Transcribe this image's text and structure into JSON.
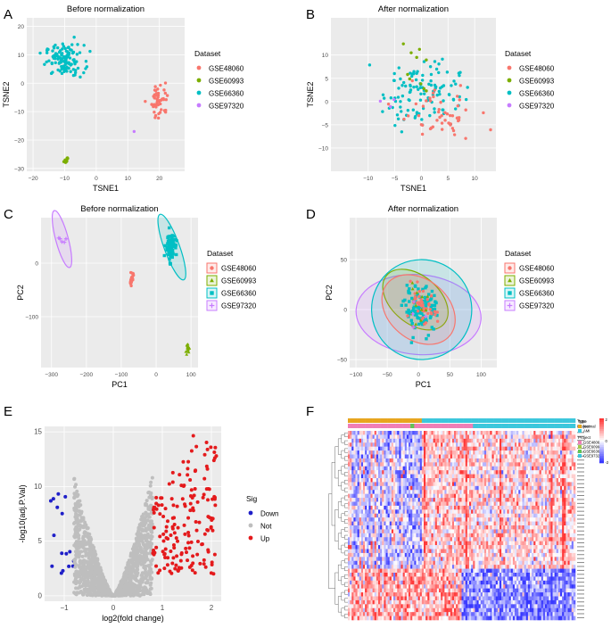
{
  "colors": {
    "GSE48060": "#F8766D",
    "GSE60993": "#7CAE00",
    "GSE66360": "#00BFC4",
    "GSE97320": "#C77CFF",
    "panel_bg": "#EBEBEB",
    "grid": "#FFFFFF",
    "down": "#1F1FC8",
    "not": "#BEBEBE",
    "up": "#E41A1C"
  },
  "chart_data": [
    {
      "id": "A",
      "type": "scatter",
      "title": "Before normalization",
      "xlabel": "TSNE1",
      "ylabel": "TSNE2",
      "xlim": [
        -22,
        28
      ],
      "ylim": [
        -31,
        23
      ],
      "xticks": [
        -20,
        -10,
        0,
        10,
        20
      ],
      "yticks": [
        -30,
        -20,
        -10,
        0,
        10,
        20
      ],
      "legend_title": "Dataset",
      "legend": [
        "GSE48060",
        "GSE60993",
        "GSE66360",
        "GSE97320"
      ],
      "clusters": [
        {
          "series": "GSE66360",
          "count": 120,
          "center": [
            -10,
            8
          ],
          "spread": [
            5.5,
            5
          ]
        },
        {
          "series": "GSE48060",
          "count": 52,
          "center": [
            20,
            -6
          ],
          "spread": [
            2.5,
            5.5
          ]
        },
        {
          "series": "GSE60993",
          "count": 14,
          "center": [
            -9.5,
            -27
          ],
          "spread": [
            0.8,
            1.2
          ]
        },
        {
          "series": "GSE97320",
          "count": 1,
          "center": [
            12,
            -17
          ],
          "spread": [
            0,
            0
          ]
        }
      ]
    },
    {
      "id": "B",
      "type": "scatter",
      "title": "After normalization",
      "xlabel": "TSNE1",
      "ylabel": "TSNE2",
      "xlim": [
        -17,
        14
      ],
      "ylim": [
        -15,
        18
      ],
      "xticks": [
        -10,
        -5,
        0,
        5,
        10
      ],
      "yticks": [
        -10,
        -5,
        0,
        5,
        10
      ],
      "legend_title": "Dataset",
      "legend": [
        "GSE48060",
        "GSE60993",
        "GSE66360",
        "GSE97320"
      ],
      "clusters": [
        {
          "series": "GSE66360",
          "count": 120,
          "center": [
            0,
            2
          ],
          "spread": [
            6.5,
            6.5
          ]
        },
        {
          "series": "GSE48060",
          "count": 52,
          "center": [
            3,
            -3
          ],
          "spread": [
            7,
            5
          ]
        },
        {
          "series": "GSE60993",
          "count": 10,
          "center": [
            0,
            6
          ],
          "spread": [
            5,
            7
          ]
        },
        {
          "series": "GSE97320",
          "count": 3,
          "center": [
            -5,
            0
          ],
          "spread": [
            2,
            2
          ]
        }
      ]
    },
    {
      "id": "C",
      "type": "scatter",
      "title": "Before normalization",
      "xlabel": "PC1",
      "ylabel": "PC2",
      "xlim": [
        -330,
        120
      ],
      "ylim": [
        -195,
        85
      ],
      "xticks": [
        -300,
        -200,
        -100,
        0,
        100
      ],
      "yticks": [
        -100,
        0
      ],
      "legend_title": "Dataset",
      "legend": [
        "GSE48060",
        "GSE60993",
        "GSE66360",
        "GSE97320"
      ],
      "clusters": [
        {
          "series": "GSE66360",
          "count": 90,
          "center": [
            40,
            30
          ],
          "spread": [
            12,
            22
          ]
        },
        {
          "series": "GSE48060",
          "count": 30,
          "center": [
            -70,
            -30
          ],
          "spread": [
            5,
            10
          ]
        },
        {
          "series": "GSE60993",
          "count": 14,
          "center": [
            90,
            -160
          ],
          "spread": [
            4,
            8
          ]
        },
        {
          "series": "GSE97320",
          "count": 5,
          "center": [
            -270,
            45
          ],
          "spread": [
            8,
            10
          ]
        }
      ],
      "ellipses": [
        {
          "series": "GSE66360",
          "center": [
            45,
            30
          ],
          "rx": 22,
          "ry": 65,
          "angle": 20
        },
        {
          "series": "GSE97320",
          "center": [
            -270,
            45
          ],
          "rx": 18,
          "ry": 55,
          "angle": 15
        }
      ]
    },
    {
      "id": "D",
      "type": "scatter",
      "title": "After normalization",
      "xlabel": "PC1",
      "ylabel": "PC2",
      "xlim": [
        -110,
        125
      ],
      "ylim": [
        -58,
        92
      ],
      "xticks": [
        -100,
        -50,
        0,
        50,
        100
      ],
      "yticks": [
        -50,
        0,
        50
      ],
      "legend_title": "Dataset",
      "legend": [
        "GSE48060",
        "GSE60993",
        "GSE66360",
        "GSE97320"
      ],
      "clusters": [
        {
          "series": "GSE66360",
          "count": 110,
          "center": [
            5,
            0
          ],
          "spread": [
            25,
            20
          ]
        },
        {
          "series": "GSE48060",
          "count": 45,
          "center": [
            5,
            0
          ],
          "spread": [
            22,
            18
          ]
        },
        {
          "series": "GSE60993",
          "count": 12,
          "center": [
            0,
            5
          ],
          "spread": [
            18,
            15
          ]
        },
        {
          "series": "GSE97320",
          "count": 4,
          "center": [
            -5,
            -5
          ],
          "spread": [
            15,
            12
          ]
        }
      ],
      "ellipses": [
        {
          "series": "GSE97320",
          "center": [
            0,
            -5
          ],
          "rx": 100,
          "ry": 40,
          "angle": -5
        },
        {
          "series": "GSE66360",
          "center": [
            5,
            0
          ],
          "rx": 80,
          "ry": 50,
          "angle": -20
        },
        {
          "series": "GSE60993",
          "center": [
            -5,
            10
          ],
          "rx": 60,
          "ry": 24,
          "angle": -40
        },
        {
          "series": "GSE48060",
          "center": [
            0,
            0
          ],
          "rx": 65,
          "ry": 30,
          "angle": -40
        }
      ]
    },
    {
      "id": "E",
      "type": "scatter",
      "title": "",
      "xlabel": "log2(fold change)",
      "ylabel": "-log10(adj.P.Val)",
      "xlim": [
        -1.4,
        2.2
      ],
      "ylim": [
        -0.5,
        15.5
      ],
      "xticks": [
        -1,
        0,
        1,
        2
      ],
      "yticks": [
        0,
        5,
        10,
        15
      ],
      "legend_title": "Sig",
      "legend": [
        "Down",
        "Not",
        "Up"
      ],
      "groups": [
        {
          "series": "Down",
          "count": 16,
          "x_range": [
            -1.3,
            -0.8
          ],
          "y_range": [
            2,
            9.5
          ]
        },
        {
          "series": "Not",
          "count": 1500,
          "shape": "volcano",
          "x_range": [
            -0.8,
            0.8
          ],
          "y_range": [
            0,
            11
          ]
        },
        {
          "series": "Up",
          "count": 170,
          "x_range": [
            0.8,
            2.1
          ],
          "y_range": [
            2,
            15
          ]
        }
      ]
    },
    {
      "id": "F",
      "type": "heatmap",
      "rows": 60,
      "columns": 190,
      "color_scale": [
        -2,
        0,
        2
      ],
      "annotations": {
        "type_title": "Type",
        "type_levels": [
          "Normal",
          "AMI"
        ],
        "project_title": "Project",
        "project_levels": [
          "GSE48060",
          "GSE60993",
          "GSE66360",
          "GSE97320"
        ]
      },
      "annotation_labels": [
        "Type",
        "Project"
      ]
    }
  ],
  "panels": {
    "A": "A",
    "B": "B",
    "C": "C",
    "D": "D",
    "E": "E",
    "F": "F"
  }
}
